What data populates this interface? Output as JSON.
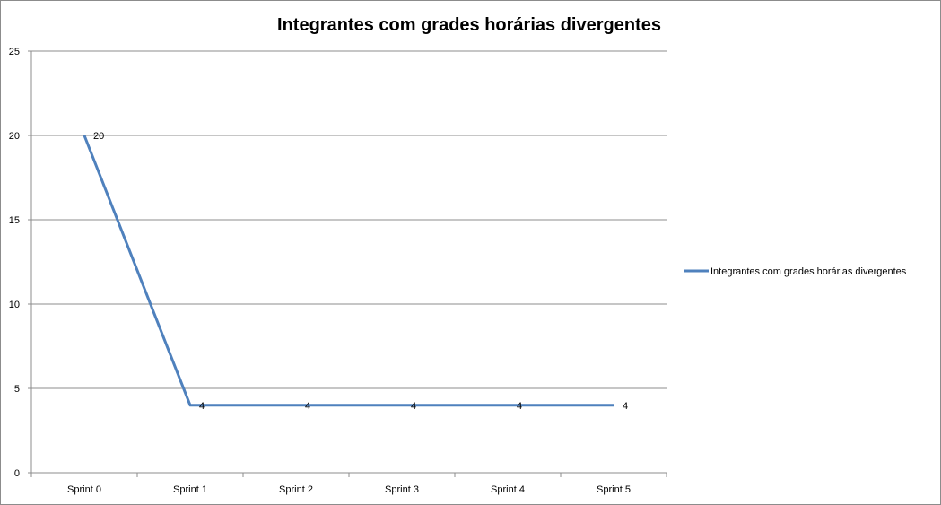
{
  "chart_data": {
    "type": "line",
    "title": "Integrantes com grades horárias divergentes",
    "categories": [
      "Sprint 0",
      "Sprint 1",
      "Sprint 2",
      "Sprint 3",
      "Sprint 4",
      "Sprint 5"
    ],
    "series": [
      {
        "name": "Integrantes com grades horárias divergentes",
        "values": [
          20,
          4,
          4,
          4,
          4,
          4
        ],
        "color": "#4f81bd"
      }
    ],
    "ylim": [
      0,
      25
    ],
    "yticks": [
      0,
      5,
      10,
      15,
      20,
      25
    ],
    "grid": true,
    "legend_position": "right",
    "data_labels": true
  }
}
